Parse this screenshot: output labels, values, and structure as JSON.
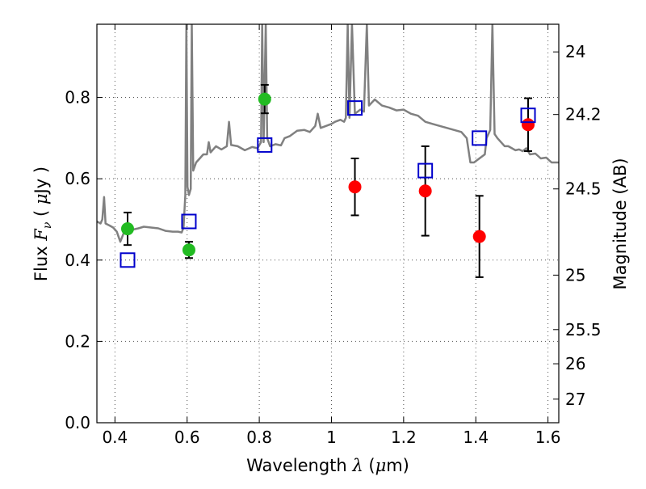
{
  "chart_data": {
    "type": "scatter",
    "title": "",
    "xlabel": "Wavelength  λ (μm)",
    "ylabel": "Flux  F_ν  ( μJy )",
    "y2label": "Magnitude (AB)",
    "xlim": [
      0.35,
      1.63
    ],
    "ylim": [
      0.0,
      0.98
    ],
    "grid": true,
    "x_ticks": [
      0.4,
      0.6,
      0.8,
      1.0,
      1.2,
      1.4,
      1.6
    ],
    "x_tick_labels": [
      "0.4",
      "0.6",
      "0.8",
      "1",
      "1.2",
      "1.4",
      "1.6"
    ],
    "y_ticks": [
      0.0,
      0.2,
      0.4,
      0.6,
      0.8
    ],
    "y_tick_labels": [
      "0.0",
      "0.2",
      "0.4",
      "0.6",
      "0.8"
    ],
    "y2_ticks": [
      {
        "label": "24",
        "flux": 0.912
      },
      {
        "label": "24.2",
        "flux": 0.758
      },
      {
        "label": "24.5",
        "flux": 0.575
      },
      {
        "label": "25",
        "flux": 0.363
      },
      {
        "label": "25.5",
        "flux": 0.229
      },
      {
        "label": "26",
        "flux": 0.145
      },
      {
        "label": "27",
        "flux": 0.058
      }
    ],
    "series": [
      {
        "kind": "line",
        "color": "#808080",
        "points": [
          [
            0.35,
            0.495
          ],
          [
            0.36,
            0.49
          ],
          [
            0.365,
            0.5
          ],
          [
            0.37,
            0.555
          ],
          [
            0.374,
            0.49
          ],
          [
            0.385,
            0.485
          ],
          [
            0.395,
            0.48
          ],
          [
            0.405,
            0.47
          ],
          [
            0.415,
            0.445
          ],
          [
            0.425,
            0.468
          ],
          [
            0.435,
            0.47
          ],
          [
            0.45,
            0.475
          ],
          [
            0.465,
            0.478
          ],
          [
            0.48,
            0.482
          ],
          [
            0.5,
            0.48
          ],
          [
            0.52,
            0.478
          ],
          [
            0.54,
            0.472
          ],
          [
            0.56,
            0.47
          ],
          [
            0.575,
            0.47
          ],
          [
            0.585,
            0.468
          ],
          [
            0.59,
            0.48
          ],
          [
            0.595,
            0.56
          ],
          [
            0.598,
            0.98
          ],
          [
            0.601,
            0.58
          ],
          [
            0.605,
            0.56
          ],
          [
            0.61,
            0.575
          ],
          [
            0.613,
            0.98
          ],
          [
            0.617,
            0.62
          ],
          [
            0.625,
            0.64
          ],
          [
            0.635,
            0.65
          ],
          [
            0.645,
            0.66
          ],
          [
            0.655,
            0.66
          ],
          [
            0.66,
            0.69
          ],
          [
            0.665,
            0.665
          ],
          [
            0.68,
            0.68
          ],
          [
            0.695,
            0.672
          ],
          [
            0.71,
            0.68
          ],
          [
            0.716,
            0.74
          ],
          [
            0.722,
            0.683
          ],
          [
            0.74,
            0.68
          ],
          [
            0.76,
            0.67
          ],
          [
            0.78,
            0.678
          ],
          [
            0.795,
            0.675
          ],
          [
            0.805,
            0.69
          ],
          [
            0.808,
            0.98
          ],
          [
            0.812,
            0.69
          ],
          [
            0.818,
            0.98
          ],
          [
            0.822,
            0.7
          ],
          [
            0.83,
            0.68
          ],
          [
            0.845,
            0.685
          ],
          [
            0.86,
            0.682
          ],
          [
            0.87,
            0.7
          ],
          [
            0.885,
            0.705
          ],
          [
            0.905,
            0.718
          ],
          [
            0.925,
            0.72
          ],
          [
            0.94,
            0.715
          ],
          [
            0.955,
            0.73
          ],
          [
            0.962,
            0.76
          ],
          [
            0.97,
            0.725
          ],
          [
            0.985,
            0.73
          ],
          [
            1.0,
            0.735
          ],
          [
            1.01,
            0.74
          ],
          [
            1.025,
            0.745
          ],
          [
            1.035,
            0.74
          ],
          [
            1.04,
            0.75
          ],
          [
            1.045,
            0.98
          ],
          [
            1.05,
            0.75
          ],
          [
            1.057,
            0.98
          ],
          [
            1.065,
            0.76
          ],
          [
            1.08,
            0.77
          ],
          [
            1.09,
            0.765
          ],
          [
            1.098,
            0.98
          ],
          [
            1.104,
            0.78
          ],
          [
            1.12,
            0.795
          ],
          [
            1.14,
            0.78
          ],
          [
            1.16,
            0.775
          ],
          [
            1.18,
            0.768
          ],
          [
            1.2,
            0.77
          ],
          [
            1.22,
            0.76
          ],
          [
            1.24,
            0.755
          ],
          [
            1.26,
            0.74
          ],
          [
            1.28,
            0.735
          ],
          [
            1.3,
            0.73
          ],
          [
            1.32,
            0.725
          ],
          [
            1.34,
            0.72
          ],
          [
            1.36,
            0.715
          ],
          [
            1.375,
            0.7
          ],
          [
            1.385,
            0.64
          ],
          [
            1.395,
            0.64
          ],
          [
            1.41,
            0.65
          ],
          [
            1.425,
            0.66
          ],
          [
            1.43,
            0.7
          ],
          [
            1.44,
            0.72
          ],
          [
            1.446,
            0.98
          ],
          [
            1.452,
            0.71
          ],
          [
            1.46,
            0.7
          ],
          [
            1.47,
            0.69
          ],
          [
            1.48,
            0.68
          ],
          [
            1.49,
            0.68
          ],
          [
            1.5,
            0.675
          ],
          [
            1.51,
            0.67
          ],
          [
            1.52,
            0.672
          ],
          [
            1.53,
            0.668
          ],
          [
            1.54,
            0.675
          ],
          [
            1.55,
            0.66
          ],
          [
            1.565,
            0.662
          ],
          [
            1.58,
            0.65
          ],
          [
            1.595,
            0.652
          ],
          [
            1.61,
            0.64
          ],
          [
            1.63,
            0.64
          ]
        ]
      },
      {
        "kind": "points",
        "marker": "circle",
        "color": "#22bb22",
        "points": [
          {
            "x": 0.435,
            "y": 0.477,
            "yerr_low": 0.04,
            "yerr_high": 0.04
          },
          {
            "x": 0.605,
            "y": 0.425,
            "yerr_low": 0.02,
            "yerr_high": 0.02
          },
          {
            "x": 0.815,
            "y": 0.796,
            "yerr_low": 0.035,
            "yerr_high": 0.035
          }
        ]
      },
      {
        "kind": "points",
        "marker": "circle",
        "color": "#ff0000",
        "points": [
          {
            "x": 1.065,
            "y": 0.58,
            "yerr_low": 0.07,
            "yerr_high": 0.07
          },
          {
            "x": 1.26,
            "y": 0.57,
            "yerr_low": 0.11,
            "yerr_high": 0.11
          },
          {
            "x": 1.41,
            "y": 0.458,
            "yerr_low": 0.1,
            "yerr_high": 0.1
          },
          {
            "x": 1.545,
            "y": 0.733,
            "yerr_low": 0.065,
            "yerr_high": 0.065
          }
        ]
      },
      {
        "kind": "points",
        "marker": "square-open",
        "color": "#0000cc",
        "points": [
          {
            "x": 0.435,
            "y": 0.4
          },
          {
            "x": 0.605,
            "y": 0.495
          },
          {
            "x": 0.815,
            "y": 0.683
          },
          {
            "x": 1.065,
            "y": 0.774
          },
          {
            "x": 1.26,
            "y": 0.62
          },
          {
            "x": 1.41,
            "y": 0.7
          },
          {
            "x": 1.545,
            "y": 0.756
          }
        ]
      }
    ]
  }
}
